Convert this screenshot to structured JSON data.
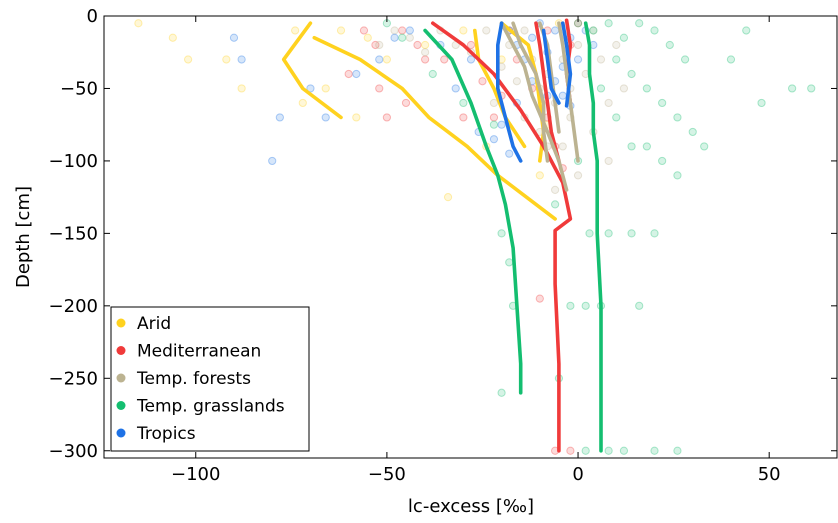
{
  "chart_data": {
    "type": "line",
    "xlabel": "lc-excess [‰]",
    "ylabel": "Depth [cm]",
    "xlim": [
      -124,
      68
    ],
    "ylim": [
      -305,
      0
    ],
    "x_ticks": [
      -100,
      -50,
      0,
      50
    ],
    "y_ticks": [
      0,
      -50,
      -100,
      -150,
      -200,
      -250,
      -300
    ],
    "x_tick_labels": [
      "−100",
      "−50",
      "0",
      "50"
    ],
    "y_tick_labels": [
      "0",
      "−50",
      "−100",
      "−150",
      "−200",
      "−250",
      "−300"
    ],
    "grid": false,
    "legend_position": "bottom-left",
    "series": [
      {
        "name": "Arid",
        "color": "#ffd21f",
        "lines": [
          [
            [
              -70,
              -5
            ],
            [
              -77,
              -30
            ],
            [
              -72,
              -50
            ],
            [
              -62,
              -70
            ]
          ],
          [
            [
              -69,
              -15
            ],
            [
              -57,
              -30
            ],
            [
              -46,
              -50
            ],
            [
              -39,
              -70
            ],
            [
              -29,
              -90
            ],
            [
              -21,
              -110
            ],
            [
              -6,
              -140
            ]
          ],
          [
            [
              -27,
              -10
            ],
            [
              -26,
              -30
            ],
            [
              -22,
              -50
            ],
            [
              -19,
              -70
            ],
            [
              -14,
              -90
            ]
          ],
          [
            [
              -20,
              -5
            ],
            [
              -13,
              -20
            ],
            [
              -11,
              -40
            ],
            [
              -10,
              -60
            ],
            [
              -9,
              -80
            ],
            [
              -10,
              -100
            ]
          ]
        ],
        "points": [
          [
            -115,
            -5
          ],
          [
            -106,
            -15
          ],
          [
            -102,
            -30
          ],
          [
            -92,
            -30
          ],
          [
            -88,
            -50
          ],
          [
            -72,
            -60
          ],
          [
            -74,
            -10
          ],
          [
            -62,
            -10
          ],
          [
            -55,
            -15
          ],
          [
            -50,
            -30
          ],
          [
            -66,
            -50
          ],
          [
            -58,
            -70
          ],
          [
            -40,
            -20
          ],
          [
            -30,
            -10
          ],
          [
            -24,
            -90
          ],
          [
            -34,
            -125
          ],
          [
            -10,
            -110
          ],
          [
            -20,
            -30
          ],
          [
            -8,
            -75
          ],
          [
            -5,
            -5
          ]
        ]
      },
      {
        "name": "Mediterranean",
        "color": "#f03a3a",
        "lines": [
          [
            [
              -38,
              -5
            ],
            [
              -30,
              -20
            ],
            [
              -22,
              -40
            ],
            [
              -15,
              -65
            ],
            [
              -9,
              -90
            ],
            [
              -4,
              -115
            ],
            [
              -2,
              -140
            ],
            [
              -6,
              -148
            ],
            [
              -6,
              -185
            ],
            [
              -5,
              -240
            ],
            [
              -5,
              -300
            ]
          ],
          [
            [
              -11,
              -5
            ],
            [
              -10,
              -20
            ],
            [
              -9,
              -40
            ],
            [
              -8,
              -60
            ],
            [
              -7,
              -80
            ],
            [
              -5,
              -100
            ]
          ],
          [
            [
              -3,
              -3
            ],
            [
              -2,
              -20
            ],
            [
              -3,
              -40
            ],
            [
              -2,
              -60
            ]
          ]
        ],
        "points": [
          [
            -56,
            -10
          ],
          [
            -53,
            -20
          ],
          [
            -46,
            -10
          ],
          [
            -42,
            -20
          ],
          [
            -60,
            -40
          ],
          [
            -52,
            -50
          ],
          [
            -45,
            -60
          ],
          [
            -50,
            -70
          ],
          [
            -35,
            -30
          ],
          [
            -28,
            -20
          ],
          [
            -25,
            -45
          ],
          [
            -22,
            -70
          ],
          [
            -18,
            -10
          ],
          [
            -16,
            -30
          ],
          [
            -12,
            -50
          ],
          [
            -8,
            -70
          ],
          [
            -6,
            -90
          ],
          [
            -4,
            -105
          ],
          [
            -2,
            -20
          ],
          [
            0,
            -5
          ],
          [
            -8,
            -10
          ],
          [
            -30,
            -70
          ],
          [
            -40,
            -30
          ],
          [
            -20,
            -55
          ],
          [
            -6,
            -300
          ],
          [
            -2,
            -300
          ],
          [
            -10,
            -195
          ]
        ]
      },
      {
        "name": "Temp. forests",
        "color": "#bcb391",
        "lines": [
          [
            [
              -20,
              -5
            ],
            [
              -17,
              -20
            ],
            [
              -14,
              -35
            ],
            [
              -12,
              -55
            ],
            [
              -8,
              -80
            ],
            [
              -5,
              -100
            ],
            [
              -3,
              -120
            ]
          ],
          [
            [
              -17,
              -5
            ],
            [
              -15,
              -20
            ],
            [
              -11,
              -40
            ],
            [
              -9,
              -60
            ],
            [
              -9,
              -80
            ],
            [
              -8,
              -100
            ]
          ],
          [
            [
              -10,
              -5
            ],
            [
              -8,
              -20
            ],
            [
              -7,
              -40
            ],
            [
              -6,
              -60
            ],
            [
              -5,
              -80
            ]
          ],
          [
            [
              -5,
              -5
            ],
            [
              -4,
              -20
            ],
            [
              -3,
              -40
            ],
            [
              -2,
              -60
            ],
            [
              -1,
              -80
            ],
            [
              0,
              -100
            ]
          ]
        ],
        "points": [
          [
            -52,
            -20
          ],
          [
            -48,
            -10
          ],
          [
            -44,
            -15
          ],
          [
            -40,
            -25
          ],
          [
            -36,
            -10
          ],
          [
            -32,
            -20
          ],
          [
            -28,
            -25
          ],
          [
            -24,
            -10
          ],
          [
            -20,
            -35
          ],
          [
            -18,
            -20
          ],
          [
            -16,
            -45
          ],
          [
            -14,
            -10
          ],
          [
            -12,
            -30
          ],
          [
            -10,
            -50
          ],
          [
            -8,
            -40
          ],
          [
            -6,
            -60
          ],
          [
            -4,
            -30
          ],
          [
            -2,
            -50
          ],
          [
            0,
            -20
          ],
          [
            2,
            -40
          ],
          [
            4,
            -10
          ],
          [
            6,
            -30
          ],
          [
            8,
            -60
          ],
          [
            10,
            -20
          ],
          [
            12,
            -50
          ],
          [
            -14,
            -70
          ],
          [
            -10,
            -80
          ],
          [
            -8,
            -90
          ],
          [
            -4,
            -90
          ],
          [
            0,
            -110
          ],
          [
            -6,
            -120
          ],
          [
            -2,
            -70
          ],
          [
            4,
            -80
          ],
          [
            8,
            -100
          ],
          [
            -22,
            -60
          ]
        ]
      },
      {
        "name": "Temp. grasslands",
        "color": "#14be70",
        "lines": [
          [
            [
              -40,
              -10
            ],
            [
              -33,
              -30
            ],
            [
              -28,
              -60
            ],
            [
              -24,
              -90
            ],
            [
              -21,
              -110
            ],
            [
              -19,
              -130
            ],
            [
              -17,
              -160
            ],
            [
              -16,
              -200
            ],
            [
              -15,
              -240
            ],
            [
              -15,
              -260
            ]
          ],
          [
            [
              2,
              -5
            ],
            [
              3,
              -20
            ],
            [
              3,
              -40
            ],
            [
              4,
              -60
            ],
            [
              4,
              -80
            ],
            [
              5,
              -100
            ],
            [
              5,
              -150
            ],
            [
              6,
              -200
            ],
            [
              6,
              -250
            ],
            [
              6,
              -300
            ]
          ]
        ],
        "points": [
          [
            -50,
            -5
          ],
          [
            -46,
            -15
          ],
          [
            -38,
            -40
          ],
          [
            -30,
            -60
          ],
          [
            -22,
            -75
          ],
          [
            -20,
            -150
          ],
          [
            -18,
            -170
          ],
          [
            -17,
            -200
          ],
          [
            -20,
            -260
          ],
          [
            0,
            -5
          ],
          [
            4,
            -10
          ],
          [
            8,
            -5
          ],
          [
            12,
            -15
          ],
          [
            16,
            -5
          ],
          [
            20,
            -10
          ],
          [
            24,
            -20
          ],
          [
            28,
            -30
          ],
          [
            10,
            -30
          ],
          [
            14,
            -40
          ],
          [
            18,
            -50
          ],
          [
            22,
            -60
          ],
          [
            26,
            -70
          ],
          [
            30,
            -80
          ],
          [
            6,
            -50
          ],
          [
            10,
            -70
          ],
          [
            14,
            -90
          ],
          [
            18,
            -90
          ],
          [
            22,
            -100
          ],
          [
            26,
            -110
          ],
          [
            33,
            -90
          ],
          [
            40,
            -30
          ],
          [
            44,
            -10
          ],
          [
            48,
            -60
          ],
          [
            56,
            -50
          ],
          [
            61,
            -50
          ],
          [
            20,
            -150
          ],
          [
            14,
            -150
          ],
          [
            8,
            -150
          ],
          [
            3,
            -150
          ],
          [
            -2,
            -200
          ],
          [
            2,
            -200
          ],
          [
            6,
            -200
          ],
          [
            -5,
            -250
          ],
          [
            2,
            -300
          ],
          [
            8,
            -300
          ],
          [
            12,
            -300
          ],
          [
            20,
            -300
          ],
          [
            26,
            -300
          ],
          [
            0,
            -100
          ],
          [
            -6,
            -130
          ],
          [
            16,
            -200
          ]
        ]
      },
      {
        "name": "Tropics",
        "color": "#1e72e6",
        "lines": [
          [
            [
              -20,
              -5
            ],
            [
              -21,
              -20
            ],
            [
              -21,
              -35
            ],
            [
              -21,
              -50
            ],
            [
              -19,
              -70
            ],
            [
              -17,
              -90
            ],
            [
              -15,
              -100
            ]
          ],
          [
            [
              -4,
              -5
            ],
            [
              -3,
              -20
            ],
            [
              -2,
              -40
            ],
            [
              -3,
              -62
            ]
          ],
          [
            [
              -9,
              -10
            ],
            [
              -8,
              -30
            ],
            [
              -7,
              -50
            ],
            [
              -5,
              -60
            ]
          ]
        ],
        "points": [
          [
            -90,
            -15
          ],
          [
            -88,
            -30
          ],
          [
            -78,
            -70
          ],
          [
            -70,
            -50
          ],
          [
            -80,
            -100
          ],
          [
            -66,
            -70
          ],
          [
            -58,
            -40
          ],
          [
            -52,
            -30
          ],
          [
            -48,
            -15
          ],
          [
            -44,
            -10
          ],
          [
            -36,
            -20
          ],
          [
            -32,
            -50
          ],
          [
            -28,
            -30
          ],
          [
            -26,
            -80
          ],
          [
            -18,
            -10
          ],
          [
            -16,
            -20
          ],
          [
            -14,
            -30
          ],
          [
            -12,
            -15
          ],
          [
            -10,
            -5
          ],
          [
            -8,
            -25
          ],
          [
            -6,
            -10
          ],
          [
            -4,
            -35
          ],
          [
            -2,
            -15
          ],
          [
            0,
            -30
          ],
          [
            2,
            -10
          ],
          [
            4,
            -20
          ],
          [
            -6,
            -45
          ],
          [
            -4,
            -55
          ],
          [
            -2,
            -62
          ],
          [
            -8,
            -55
          ],
          [
            -12,
            -45
          ],
          [
            -16,
            -60
          ],
          [
            -20,
            -75
          ],
          [
            -22,
            -85
          ],
          [
            -18,
            -95
          ]
        ]
      }
    ]
  }
}
